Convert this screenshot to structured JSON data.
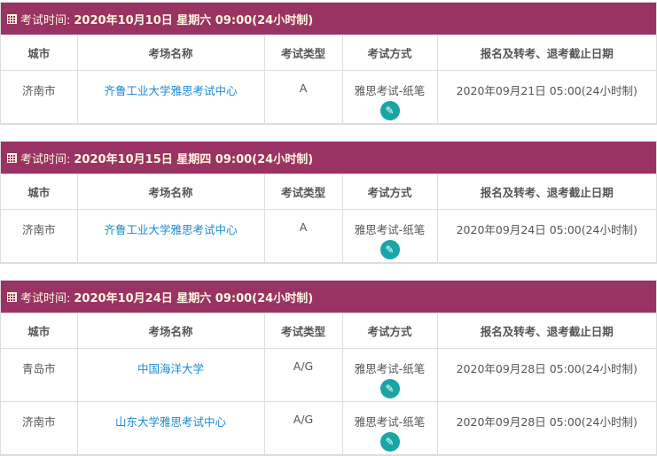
{
  "headers": {
    "label": "考试时间:",
    "city": "城市",
    "venue": "考场名称",
    "type": "考试类型",
    "mode": "考试方式",
    "deadline": "报名及转考、退考截止日期"
  },
  "sessions": [
    {
      "datetime": "2020年10月10日 星期六 09:00(24小时制)",
      "rows": [
        {
          "city": "济南市",
          "venue": "齐鲁工业大学雅思考试中心",
          "type": "A",
          "mode": "雅思考试-纸笔",
          "deadline": "2020年09月21日 05:00(24小时制)"
        }
      ]
    },
    {
      "datetime": "2020年10月15日 星期四 09:00(24小时制)",
      "rows": [
        {
          "city": "济南市",
          "venue": "齐鲁工业大学雅思考试中心",
          "type": "A",
          "mode": "雅思考试-纸笔",
          "deadline": "2020年09月24日 05:00(24小时制)"
        }
      ]
    },
    {
      "datetime": "2020年10月24日 星期六 09:00(24小时制)",
      "rows": [
        {
          "city": "青岛市",
          "venue": "中国海洋大学",
          "type": "A/G",
          "mode": "雅思考试-纸笔",
          "deadline": "2020年09月28日 05:00(24小时制)"
        },
        {
          "city": "济南市",
          "venue": "山东大学雅思考试中心",
          "type": "A/G",
          "mode": "雅思考试-纸笔",
          "deadline": "2020年09月28日 05:00(24小时制)"
        }
      ]
    }
  ],
  "colors": {
    "header_bar": "#993363",
    "link": "#1a8ad0",
    "edit_button": "#1aa5a5"
  },
  "icons": {
    "calendar": "calendar-icon",
    "edit": "pencil-icon"
  }
}
